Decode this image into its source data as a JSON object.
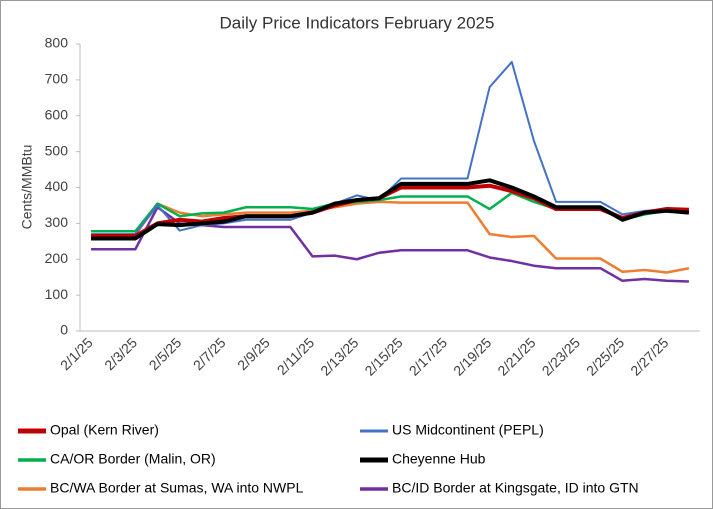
{
  "chart_data": {
    "type": "line",
    "title": "Daily Price Indicators February 2025",
    "y_label": "Cents/MMBtu",
    "categories": [
      "2/1/25",
      null,
      "2/3/25",
      null,
      "2/5/25",
      null,
      "2/7/25",
      null,
      "2/9/25",
      null,
      "2/11/25",
      null,
      "2/13/25",
      null,
      "2/15/25",
      null,
      "2/17/25",
      null,
      "2/19/25",
      null,
      "2/21/25",
      null,
      "2/23/25",
      null,
      "2/25/25",
      null,
      "2/27/25",
      null
    ],
    "ylim": [
      0,
      800
    ],
    "yticks": [
      0,
      100,
      200,
      300,
      400,
      500,
      600,
      700,
      800
    ],
    "grid": false,
    "series": [
      {
        "name": "Opal (Kern River)",
        "color": "#c00000",
        "width": 4,
        "values": [
          265,
          265,
          265,
          300,
          310,
          305,
          315,
          320,
          320,
          320,
          330,
          350,
          365,
          370,
          400,
          400,
          400,
          400,
          405,
          390,
          370,
          340,
          340,
          340,
          315,
          330,
          340,
          338
        ]
      },
      {
        "name": "US Midcontinent (PEPL)",
        "color": "#4472c4",
        "width": 2,
        "values": [
          270,
          270,
          270,
          350,
          280,
          295,
          300,
          310,
          310,
          310,
          330,
          355,
          378,
          365,
          425,
          425,
          425,
          425,
          680,
          750,
          530,
          360,
          360,
          360,
          325,
          335,
          340,
          335
        ]
      },
      {
        "name": "CA/OR Border (Malin, OR)",
        "color": "#00b050",
        "width": 2.5,
        "values": [
          278,
          278,
          278,
          355,
          320,
          328,
          330,
          345,
          345,
          345,
          340,
          355,
          360,
          365,
          375,
          375,
          375,
          375,
          340,
          385,
          360,
          340,
          345,
          345,
          310,
          325,
          335,
          330
        ]
      },
      {
        "name": "Cheyenne Hub",
        "color": "#000000",
        "width": 4,
        "values": [
          258,
          258,
          258,
          298,
          295,
          300,
          305,
          320,
          320,
          320,
          330,
          355,
          365,
          370,
          410,
          410,
          410,
          410,
          420,
          400,
          375,
          345,
          345,
          345,
          310,
          330,
          335,
          330
        ]
      },
      {
        "name": "BC/WA Border at Sumas, WA into NWPL",
        "color": "#ed7d31",
        "width": 2.5,
        "values": [
          268,
          268,
          268,
          355,
          330,
          320,
          325,
          330,
          330,
          330,
          335,
          345,
          355,
          360,
          358,
          358,
          358,
          358,
          270,
          262,
          265,
          202,
          202,
          202,
          165,
          170,
          163,
          175
        ]
      },
      {
        "name": "BC/ID Border at Kingsgate, ID into GTN",
        "color": "#7030a0",
        "width": 2.5,
        "values": [
          228,
          228,
          228,
          345,
          300,
          295,
          290,
          290,
          290,
          290,
          208,
          210,
          200,
          218,
          225,
          225,
          225,
          225,
          205,
          195,
          182,
          175,
          175,
          175,
          140,
          145,
          140,
          138
        ]
      }
    ]
  }
}
